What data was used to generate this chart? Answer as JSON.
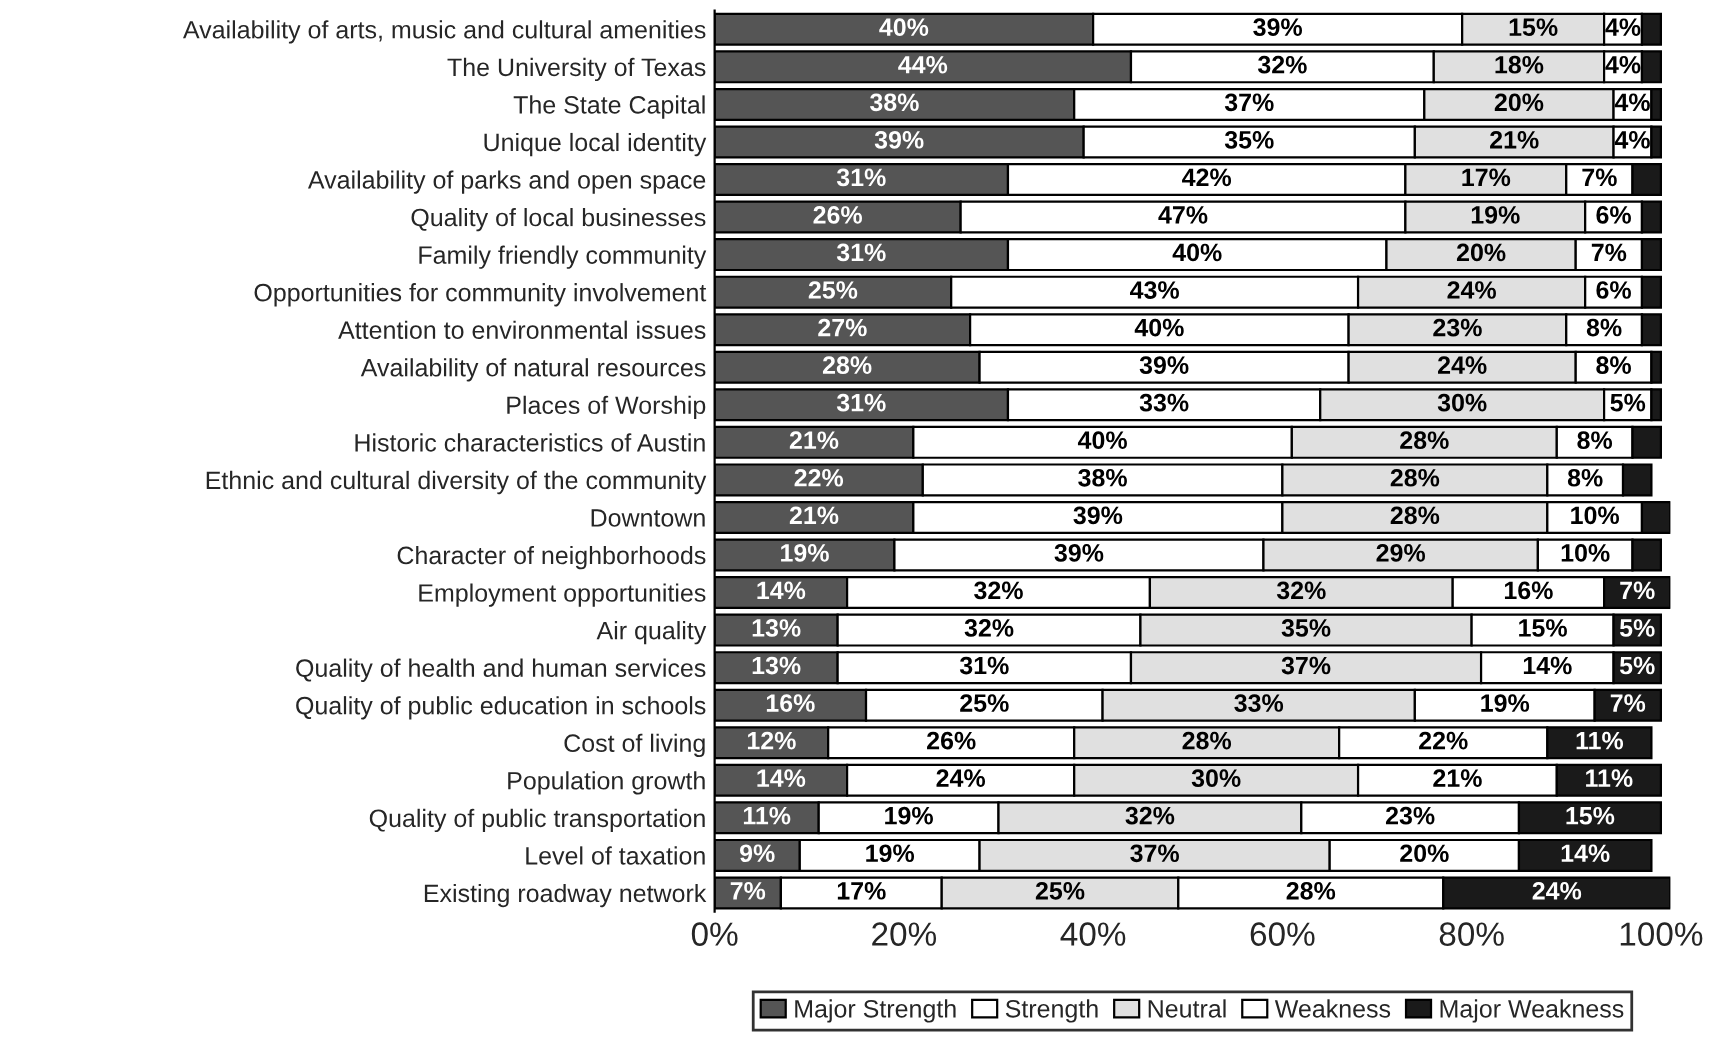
{
  "chart_data": {
    "type": "bar",
    "orientation": "horizontal",
    "stacked": true,
    "legend": "bottom",
    "grid": false,
    "categories": [
      "Availability of arts, music and cultural amenities",
      "The University of Texas",
      "The State Capital",
      "Unique local identity",
      "Availability of parks and open space",
      "Quality of local businesses",
      "Family friendly community",
      "Opportunities for community involvement",
      "Attention to environmental issues",
      "Availability of natural resources",
      "Places of Worship",
      "Historic characteristics of Austin",
      "Ethnic and cultural diversity of the community",
      "Downtown",
      "Character of neighborhoods",
      "Employment opportunities",
      "Air quality",
      "Quality of health and human services",
      "Quality of public education in schools",
      "Cost of living",
      "Population growth",
      "Quality of public transportation",
      "Level of taxation",
      "Existing roadway network"
    ],
    "xlim": [
      0,
      101
    ],
    "xticks": [
      {
        "value": 0,
        "label": "0%"
      },
      {
        "value": 20,
        "label": "20%"
      },
      {
        "value": 40,
        "label": "40%"
      },
      {
        "value": 60,
        "label": "60%"
      },
      {
        "value": 80,
        "label": "80%"
      },
      {
        "value": 100,
        "label": "100%"
      }
    ],
    "series": [
      {
        "name": "Major Strength",
        "color": "#555555",
        "values": [
          40,
          44,
          38,
          39,
          31,
          26,
          31,
          25,
          27,
          28,
          31,
          21,
          22,
          21,
          19,
          14,
          13,
          13,
          16,
          12,
          14,
          11,
          9,
          7
        ],
        "value_labels": [
          "40%",
          "44%",
          "38%",
          "39%",
          "31%",
          "26%",
          "31%",
          "25%",
          "27%",
          "28%",
          "31%",
          "21%",
          "22%",
          "21%",
          "19%",
          "14%",
          "13%",
          "13%",
          "16%",
          "12%",
          "14%",
          "11%",
          "9%",
          "7%"
        ]
      },
      {
        "name": "Strength",
        "color": "#ffffff",
        "values": [
          39,
          32,
          37,
          35,
          42,
          47,
          40,
          43,
          40,
          39,
          33,
          40,
          38,
          39,
          39,
          32,
          32,
          31,
          25,
          26,
          24,
          19,
          19,
          17
        ],
        "value_labels": [
          "39%",
          "32%",
          "37%",
          "35%",
          "42%",
          "47%",
          "40%",
          "43%",
          "40%",
          "39%",
          "33%",
          "40%",
          "38%",
          "39%",
          "39%",
          "32%",
          "32%",
          "31%",
          "25%",
          "26%",
          "24%",
          "19%",
          "19%",
          "17%"
        ]
      },
      {
        "name": "Neutral",
        "color": "#e0e0e0",
        "values": [
          15,
          18,
          20,
          21,
          17,
          19,
          20,
          24,
          23,
          24,
          30,
          28,
          28,
          28,
          29,
          32,
          35,
          37,
          33,
          28,
          30,
          32,
          37,
          25
        ],
        "value_labels": [
          "15%",
          "18%",
          "20%",
          "21%",
          "17%",
          "19%",
          "20%",
          "24%",
          "23%",
          "24%",
          "30%",
          "28%",
          "28%",
          "28%",
          "29%",
          "32%",
          "35%",
          "37%",
          "33%",
          "28%",
          "30%",
          "32%",
          "37%",
          "25%"
        ]
      },
      {
        "name": "Weakness",
        "color": "#ffffff",
        "values": [
          4,
          4,
          4,
          4,
          7,
          6,
          7,
          6,
          8,
          8,
          5,
          8,
          8,
          10,
          10,
          16,
          15,
          14,
          19,
          22,
          21,
          23,
          20,
          28
        ],
        "value_labels": [
          "4%",
          "4%",
          "4%",
          "4%",
          "7%",
          "6%",
          "7%",
          "6%",
          "8%",
          "8%",
          "5%",
          "8%",
          "8%",
          "10%",
          "10%",
          "16%",
          "15%",
          "14%",
          "19%",
          "22%",
          "21%",
          "23%",
          "20%",
          "28%"
        ]
      },
      {
        "name": "Major Weakness",
        "color": "#1a1a1a",
        "values": [
          2,
          2,
          1,
          1,
          3,
          2,
          2,
          2,
          2,
          1,
          1,
          3,
          3,
          3,
          3,
          7,
          5,
          5,
          7,
          11,
          11,
          15,
          14,
          24
        ],
        "value_labels": [
          null,
          null,
          null,
          null,
          null,
          null,
          null,
          null,
          null,
          null,
          null,
          null,
          null,
          null,
          null,
          "7%",
          "5%",
          "5%",
          "7%",
          "11%",
          "11%",
          "15%",
          "14%",
          "24%"
        ]
      }
    ]
  }
}
